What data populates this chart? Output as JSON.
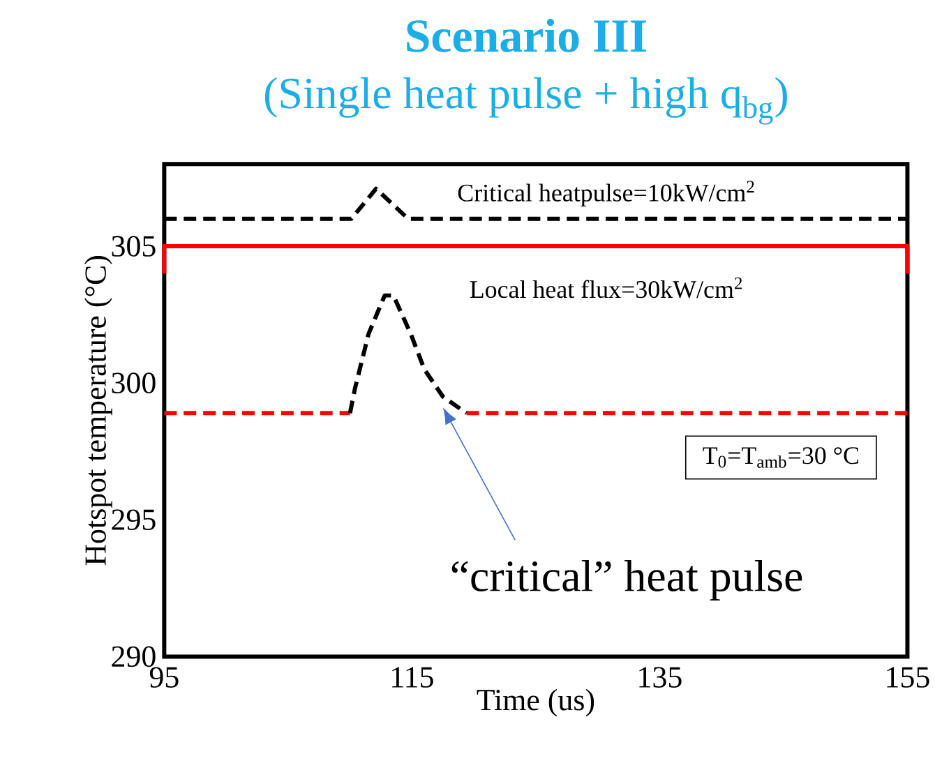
{
  "chart_data": {
    "type": "line",
    "title": "Scenario III",
    "subtitle": "(Single heat pulse + high q$_{bg}$)",
    "xlabel": "Time (us)",
    "ylabel": "Hotspot temperature (°C)",
    "xlim": [
      95,
      155
    ],
    "ylim": [
      290,
      308
    ],
    "xticks": [
      95,
      115,
      135,
      155
    ],
    "yticks": [
      290,
      295,
      300,
      305
    ],
    "grid": false,
    "marker": "none",
    "series": [
      {
        "color": "#000000",
        "line_style": "dashed",
        "x": [
          95,
          110.1,
          112.1,
          114.7,
          155
        ],
        "values": [
          306.0,
          306.0,
          307.1,
          306.0,
          306.0
        ]
      },
      {
        "color": "#ff0000",
        "line_style": "solid",
        "x": [
          95,
          95,
          155,
          155
        ],
        "values": [
          304.0,
          305.0,
          305.0,
          304.0
        ]
      },
      {
        "color": "#ff0000",
        "line_style": "dashed",
        "x": [
          95,
          110.0,
          null,
          119.4,
          155
        ],
        "values": [
          298.9,
          298.9,
          null,
          298.9,
          298.9
        ]
      },
      {
        "color": "#000000",
        "line_style": "dashed",
        "x": [
          110.0,
          110.4,
          111.5,
          112.8,
          113.5,
          114.9,
          116.0,
          117.5,
          119.4
        ],
        "values": [
          298.9,
          299.8,
          301.8,
          303.2,
          303.2,
          301.8,
          300.5,
          299.5,
          298.9
        ]
      }
    ],
    "annotations": [
      "Critical heatpulse=10kW/cm$^{2}$",
      "Local heat flux=30kW/cm$^{2}$",
      "T$_{0}$=T$_{amb}$=30 °C",
      "“critical” heat pulse"
    ]
  }
}
